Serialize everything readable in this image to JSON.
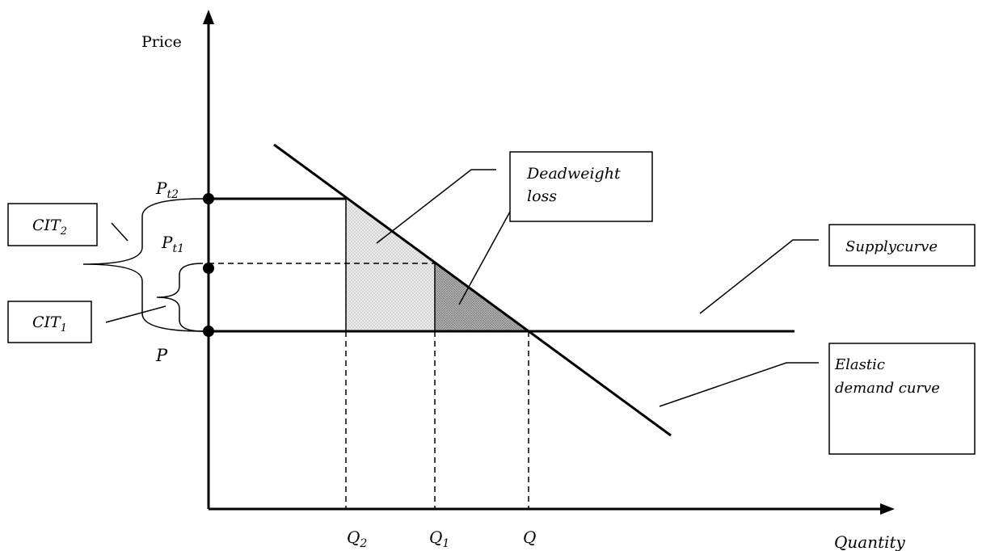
{
  "axes": {
    "y_label": "Price",
    "x_label": "Quantity"
  },
  "price_labels": {
    "pt2": {
      "base": "P",
      "sub": "t2"
    },
    "pt1": {
      "base": "P",
      "sub": "t1"
    },
    "p": "P"
  },
  "quantity_labels": {
    "q2": {
      "base": "Q",
      "sub": "2"
    },
    "q1": {
      "base": "Q",
      "sub": "1"
    },
    "q": "Q"
  },
  "boxes": {
    "cit2": {
      "base": "CIT",
      "sub": "2"
    },
    "cit1": {
      "base": "CIT",
      "sub": "1"
    },
    "deadweight_line1": "Deadweight",
    "deadweight_line2": "loss",
    "supply": "Supplycurve",
    "demand_line1": "Elastic",
    "demand_line2": "demand curve"
  },
  "colors": {
    "line": "#000000",
    "light_shade": "#e6e6e6",
    "dark_shade": "#a8a8a8"
  }
}
